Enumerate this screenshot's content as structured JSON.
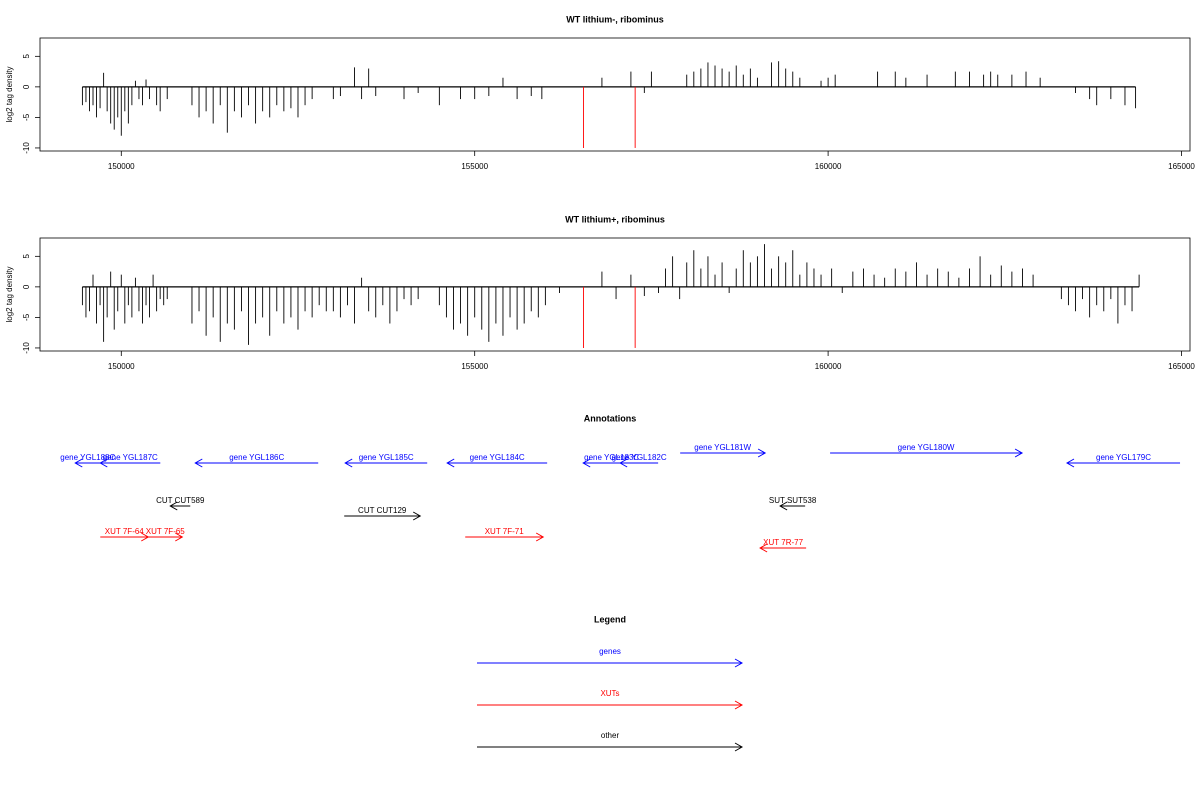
{
  "chart_data": [
    {
      "type": "spike",
      "title": "WT lithium-, ribominus",
      "y_label": "log2 tag density",
      "xlim": [
        148850,
        165120
      ],
      "xticks": [
        150000,
        155000,
        160000,
        165000
      ],
      "ylim": [
        -10.5,
        8
      ],
      "yticks": [
        -10,
        -5,
        0,
        5
      ],
      "series": [
        {
          "color": "#000000",
          "x": [
            149450,
            149500,
            149550,
            149600,
            149650,
            149700,
            149750,
            149800,
            149850,
            149900,
            149950,
            150000,
            150050,
            150100,
            150150,
            150200,
            150250,
            150300,
            150350,
            150400,
            150500,
            150550,
            150650,
            151000,
            151100,
            151200,
            151300,
            151400,
            151500,
            151600,
            151700,
            151800,
            151900,
            152000,
            152100,
            152200,
            152300,
            152400,
            152500,
            152600,
            152700,
            153000,
            153100,
            153300,
            153400,
            153500,
            153600,
            154000,
            154200,
            154500,
            154800,
            155000,
            155200,
            155400,
            155600,
            155800,
            155950,
            156800,
            157210,
            157400,
            157500,
            158000,
            158100,
            158200,
            158300,
            158400,
            158500,
            158600,
            158700,
            158800,
            158900,
            159000,
            159200,
            159300,
            159400,
            159500,
            159600,
            159900,
            160000,
            160100,
            160700,
            160950,
            161100,
            161400,
            161800,
            162000,
            162200,
            162300,
            162400,
            162600,
            162800,
            163000,
            163500,
            163700,
            163800,
            164000,
            164200,
            164350
          ],
          "values": [
            -3,
            -2.5,
            -4,
            -3,
            -5,
            -3.5,
            2.3,
            -4,
            -6,
            -7,
            -5,
            -8,
            -4,
            -6,
            -3,
            1,
            -2,
            -3,
            1.2,
            -2,
            -3,
            -4,
            -2,
            -3,
            -5,
            -4,
            -6,
            -3,
            -7.5,
            -4,
            -5,
            -3,
            -6,
            -4,
            -5,
            -3,
            -4,
            -3.5,
            -5,
            -3,
            -2,
            -2,
            -1.5,
            3.2,
            -2,
            3,
            -1.5,
            -2,
            -1,
            -3,
            -2,
            -2,
            -1.5,
            1.5,
            -2,
            -1.5,
            -2,
            1.5,
            2.5,
            -1,
            2.5,
            2,
            2.5,
            3,
            4,
            3.5,
            3,
            2.5,
            3.5,
            2,
            3,
            1.5,
            4,
            4.2,
            3,
            2.5,
            1.5,
            1,
            1.5,
            2,
            2.5,
            2.5,
            1.5,
            2,
            2.5,
            2.5,
            2,
            2.5,
            2,
            2,
            2.5,
            1.5,
            -1,
            -2,
            -3,
            -2,
            -3,
            -3.5
          ]
        },
        {
          "color": "#ff0000",
          "x": [
            156540,
            157270
          ],
          "values": [
            -10,
            -10
          ]
        }
      ]
    },
    {
      "type": "spike",
      "title": "WT lithium+, ribominus",
      "y_label": "log2 tag density",
      "xlim": [
        148850,
        165120
      ],
      "xticks": [
        150000,
        155000,
        160000,
        165000
      ],
      "ylim": [
        -10.5,
        8
      ],
      "yticks": [
        -10,
        -5,
        0,
        5
      ],
      "series": [
        {
          "color": "#000000",
          "x": [
            149450,
            149500,
            149550,
            149600,
            149650,
            149700,
            149750,
            149800,
            149850,
            149900,
            149950,
            150000,
            150050,
            150100,
            150150,
            150200,
            150250,
            150300,
            150350,
            150400,
            150450,
            150500,
            150550,
            150600,
            150650,
            151000,
            151100,
            151200,
            151300,
            151400,
            151500,
            151600,
            151700,
            151800,
            151900,
            152000,
            152100,
            152200,
            152300,
            152400,
            152500,
            152600,
            152700,
            152800,
            152900,
            153000,
            153100,
            153200,
            153300,
            153400,
            153500,
            153600,
            153700,
            153800,
            153900,
            154000,
            154100,
            154200,
            154500,
            154600,
            154700,
            154800,
            154900,
            155000,
            155100,
            155200,
            155300,
            155400,
            155500,
            155600,
            155700,
            155800,
            155900,
            156000,
            156200,
            156800,
            157000,
            157210,
            157400,
            157600,
            157700,
            157800,
            157900,
            158000,
            158100,
            158200,
            158300,
            158400,
            158500,
            158600,
            158700,
            158800,
            158900,
            159000,
            159100,
            159200,
            159300,
            159400,
            159500,
            159600,
            159700,
            159800,
            159900,
            160050,
            160200,
            160350,
            160500,
            160650,
            160800,
            160950,
            161100,
            161250,
            161400,
            161550,
            161700,
            161850,
            162000,
            162150,
            162300,
            162450,
            162600,
            162750,
            162900,
            163300,
            163400,
            163500,
            163600,
            163700,
            163800,
            163900,
            164000,
            164100,
            164200,
            164300,
            164400
          ],
          "values": [
            -3,
            -5,
            -4,
            2,
            -6,
            -3,
            -9,
            -5,
            2.5,
            -7,
            -4,
            2,
            -6,
            -3,
            -5,
            1.5,
            -4,
            -6,
            -3,
            -5,
            2,
            -4,
            -2,
            -3,
            -2,
            -6,
            -4,
            -8,
            -5,
            -9,
            -6,
            -7,
            -4,
            -9.5,
            -6,
            -5,
            -8,
            -4,
            -6,
            -5,
            -7,
            -4,
            -5,
            -3,
            -4,
            -4,
            -5,
            -3,
            -6,
            1.5,
            -4,
            -5,
            -3,
            -6,
            -4,
            -2,
            -3,
            -2,
            -3,
            -5,
            -7,
            -6,
            -8,
            -5,
            -7,
            -9,
            -6,
            -8,
            -5,
            -7,
            -6,
            -4,
            -5,
            -3,
            -1,
            2.5,
            -2,
            2,
            -1.5,
            -1,
            3,
            5,
            -2,
            4,
            6,
            3,
            5,
            2,
            4,
            -1,
            3,
            6,
            4,
            5,
            7,
            3,
            5,
            4,
            6,
            2,
            4,
            3,
            2,
            3,
            -1,
            2.5,
            3,
            2,
            1.5,
            3,
            2.5,
            4,
            2,
            3,
            2.5,
            1.5,
            3,
            5,
            2,
            3.5,
            2.5,
            3,
            2,
            -2,
            -3,
            -4,
            -2,
            -5,
            -3,
            -4,
            -2,
            -6,
            -3,
            -4,
            2
          ]
        },
        {
          "color": "#ff0000",
          "x": [
            156540,
            157270
          ],
          "values": [
            -10,
            -10
          ]
        }
      ]
    }
  ],
  "annotations": {
    "title": "Annotations",
    "features": [
      {
        "label": "gene YGL188C",
        "color": "#0000ff",
        "start": 149349,
        "end": 149703,
        "strand": "-"
      },
      {
        "label": "gene YGL187C",
        "color": "#0000ff",
        "start": 149703,
        "end": 150552,
        "strand": "-"
      },
      {
        "label": "gene YGL186C",
        "color": "#0000ff",
        "start": 151047,
        "end": 152786,
        "strand": "-"
      },
      {
        "label": "gene YGL185C",
        "color": "#0000ff",
        "start": 153168,
        "end": 154328,
        "strand": "-"
      },
      {
        "label": "gene YGL184C",
        "color": "#0000ff",
        "start": 154611,
        "end": 156025,
        "strand": "-"
      },
      {
        "label": "gene YGL183C",
        "color": "#0000ff",
        "start": 156535,
        "end": 157341,
        "strand": "-"
      },
      {
        "label": "gene YGL182C",
        "color": "#0000ff",
        "start": 157058,
        "end": 157595,
        "strand": "-"
      },
      {
        "label": "gene YGL181W",
        "color": "#0000ff",
        "start": 157907,
        "end": 159109,
        "strand": "+"
      },
      {
        "label": "gene YGL180W",
        "color": "#0000ff",
        "start": 160028,
        "end": 162744,
        "strand": "+"
      },
      {
        "label": "gene YGL179C",
        "color": "#0000ff",
        "start": 163380,
        "end": 164979,
        "strand": "-"
      },
      {
        "label": "CUT CUT589",
        "color": "#000000",
        "start": 150693,
        "end": 150976,
        "strand": "-"
      },
      {
        "label": "CUT CUT129",
        "color": "#000000",
        "start": 153154,
        "end": 154229,
        "strand": "+"
      },
      {
        "label": "SUT SUT538",
        "color": "#000000",
        "start": 159321,
        "end": 159675,
        "strand": "-"
      },
      {
        "label": "XUT 7F-64",
        "color": "#ff0000",
        "start": 149703,
        "end": 150382,
        "strand": "+"
      },
      {
        "label": "XUT 7F-65",
        "color": "#ff0000",
        "start": 150382,
        "end": 150863,
        "strand": "+"
      },
      {
        "label": "XUT 7F-71",
        "color": "#ff0000",
        "start": 154866,
        "end": 155969,
        "strand": "+"
      },
      {
        "label": "XUT 7R-77",
        "color": "#ff0000",
        "start": 159038,
        "end": 159689,
        "strand": "-"
      }
    ]
  },
  "legend": {
    "title": "Legend",
    "items": [
      {
        "label": "genes",
        "color": "#0000ff"
      },
      {
        "label": "XUTs",
        "color": "#ff0000"
      },
      {
        "label": "other",
        "color": "#000000"
      }
    ]
  }
}
